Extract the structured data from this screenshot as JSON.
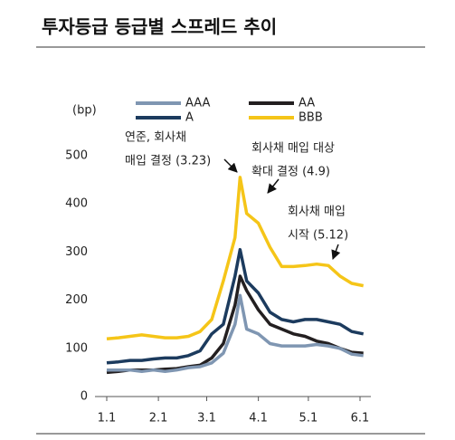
{
  "chart_data": {
    "type": "line",
    "title": "투자등급 등급별 스프레드 추이",
    "y_label": "(bp)",
    "x": [
      0,
      7,
      14,
      21,
      28,
      35,
      42,
      49,
      56,
      63,
      70,
      77,
      80,
      84,
      91,
      98,
      105,
      112,
      119,
      126,
      133,
      140,
      147,
      154
    ],
    "xlim": [
      0,
      152
    ],
    "xticks": [
      {
        "value": 0,
        "label": "1.1"
      },
      {
        "value": 31,
        "label": "2.1"
      },
      {
        "value": 60,
        "label": "3.1"
      },
      {
        "value": 91,
        "label": "4.1"
      },
      {
        "value": 121,
        "label": "5.1"
      },
      {
        "value": 152,
        "label": "6.1"
      }
    ],
    "ylim": [
      0,
      500
    ],
    "yticks": [
      0,
      100,
      200,
      300,
      400,
      500
    ],
    "series": [
      {
        "name": "BBB",
        "color": "#f5c518",
        "values": [
          120,
          122,
          125,
          128,
          125,
          122,
          122,
          125,
          135,
          160,
          240,
          330,
          455,
          380,
          360,
          310,
          270,
          270,
          272,
          275,
          272,
          250,
          235,
          230
        ]
      },
      {
        "name": "AA",
        "color": "#231f20",
        "values": [
          50,
          52,
          55,
          55,
          55,
          57,
          58,
          62,
          65,
          80,
          110,
          190,
          250,
          220,
          180,
          150,
          140,
          130,
          125,
          115,
          110,
          100,
          92,
          90
        ]
      },
      {
        "name": "A",
        "color": "#1c3b5e",
        "values": [
          70,
          72,
          75,
          75,
          78,
          80,
          80,
          85,
          95,
          130,
          150,
          250,
          305,
          240,
          215,
          175,
          160,
          155,
          160,
          160,
          155,
          150,
          135,
          130
        ]
      },
      {
        "name": "AAA",
        "color": "#7f96b2",
        "values": [
          55,
          55,
          55,
          52,
          55,
          52,
          55,
          60,
          62,
          70,
          90,
          150,
          210,
          140,
          130,
          110,
          105,
          105,
          105,
          108,
          105,
          100,
          88,
          85
        ]
      }
    ],
    "annotations": [
      {
        "lines": [
          "연준, 회사채",
          "매입 결정 (3.23)"
        ]
      },
      {
        "lines": [
          "회사채 매입 대상",
          "확대 결정 (4.9)"
        ]
      },
      {
        "lines": [
          "회사채 매입",
          "시작 (5.12)"
        ]
      }
    ]
  }
}
